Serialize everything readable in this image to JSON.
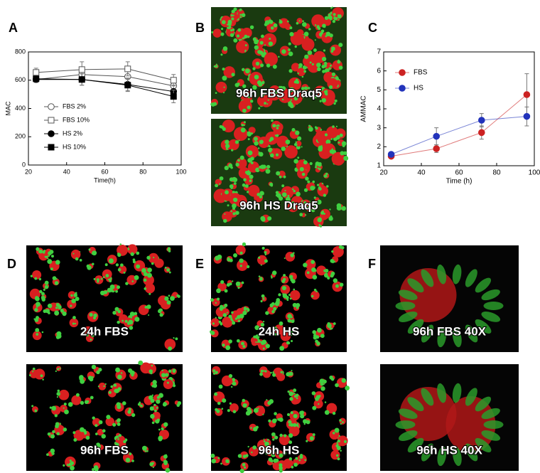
{
  "panels": [
    "A",
    "B",
    "C",
    "D",
    "E",
    "F"
  ],
  "images": [
    "96h FBS Draq5",
    "96h HS Draq5",
    "24h FBS",
    "96h FBS",
    "24h HS",
    "96h HS",
    "96h FBS 40X",
    "96h HS 40X"
  ],
  "chart_data": [
    {
      "type": "line",
      "xlabel": "Time(h)",
      "ylabel": "MAC",
      "x": [
        24,
        48,
        72,
        96
      ],
      "xlim": [
        20,
        100
      ],
      "xticks": [
        20,
        40,
        60,
        80,
        100
      ],
      "ylim": [
        0,
        800
      ],
      "yticks": [
        0,
        200,
        400,
        600,
        800
      ],
      "legend": "lower left",
      "series": [
        {
          "name": "FBS 2%",
          "color": "#555555",
          "marker": "circle",
          "filled": false,
          "values": [
            605,
            640,
            625,
            560
          ],
          "errors": [
            20,
            45,
            45,
            40
          ]
        },
        {
          "name": "FBS 10%",
          "color": "#555555",
          "marker": "square",
          "filled": false,
          "values": [
            655,
            675,
            680,
            600
          ],
          "errors": [
            30,
            55,
            50,
            40
          ]
        },
        {
          "name": "HS 2%",
          "color": "#000000",
          "marker": "circle",
          "filled": true,
          "values": [
            605,
            605,
            570,
            520
          ],
          "errors": [
            20,
            40,
            45,
            45
          ]
        },
        {
          "name": "HS 10%",
          "color": "#000000",
          "marker": "square",
          "filled": true,
          "values": [
            610,
            605,
            565,
            485
          ],
          "errors": [
            20,
            40,
            45,
            45
          ]
        }
      ]
    },
    {
      "type": "line",
      "xlabel": "Time (h)",
      "ylabel": "AMMAC",
      "x": [
        24,
        48,
        72,
        96
      ],
      "xlim": [
        20,
        100
      ],
      "xticks": [
        20,
        40,
        60,
        80,
        100
      ],
      "ylim": [
        1,
        7
      ],
      "yticks": [
        1,
        2,
        3,
        4,
        5,
        6,
        7
      ],
      "legend": "upper left",
      "series": [
        {
          "name": "FBS",
          "color": "#cc2222",
          "marker": "circle",
          "filled": true,
          "values": [
            1.5,
            1.9,
            2.75,
            4.75
          ],
          "errors": [
            0.1,
            0.2,
            0.35,
            1.1
          ]
        },
        {
          "name": "HS",
          "color": "#2233bb",
          "marker": "circle",
          "filled": true,
          "values": [
            1.6,
            2.55,
            3.4,
            3.6
          ],
          "errors": [
            0.1,
            0.45,
            0.35,
            0.5
          ]
        }
      ]
    }
  ]
}
